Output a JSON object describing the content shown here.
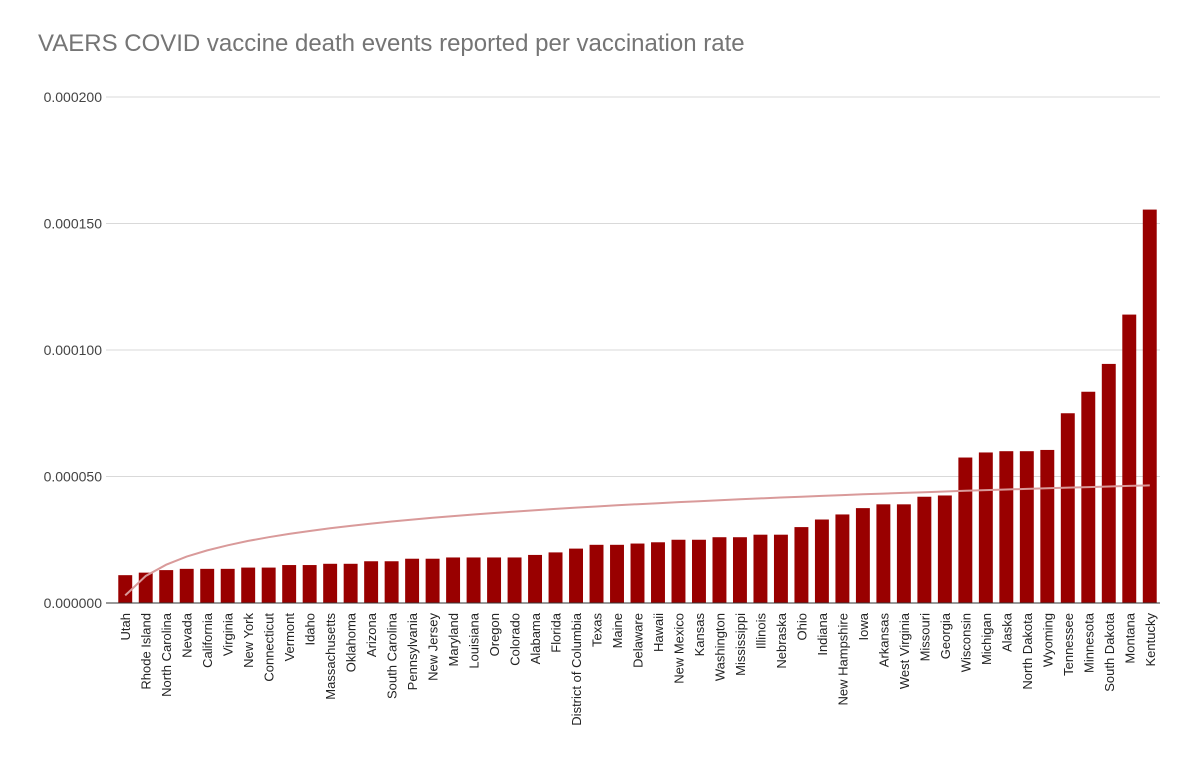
{
  "chart_data": {
    "type": "bar",
    "title": "VAERS COVID vaccine death events reported per vaccination rate",
    "xlabel": "",
    "ylabel": "",
    "ylim": [
      0,
      0.0002
    ],
    "yticks": [
      "0.000000",
      "0.000050",
      "0.000100",
      "0.000150",
      "0.000200"
    ],
    "ytick_values": [
      0,
      5e-05,
      0.0001,
      0.00015,
      0.0002
    ],
    "bar_color": "#990000",
    "trendline_color": "#d99a9a",
    "trendline": {
      "type": "logarithmic",
      "start": 3e-06,
      "end": 4.65e-05
    },
    "categories": [
      "Utah",
      "Rhode Island",
      "North Carolina",
      "Nevada",
      "California",
      "Virginia",
      "New York",
      "Connecticut",
      "Vermont",
      "Idaho",
      "Massachusetts",
      "Oklahoma",
      "Arizona",
      "South Carolina",
      "Pennsylvania",
      "New Jersey",
      "Maryland",
      "Louisiana",
      "Oregon",
      "Colorado",
      "Alabama",
      "Florida",
      "District of Columbia",
      "Texas",
      "Maine",
      "Delaware",
      "Hawaii",
      "New Mexico",
      "Kansas",
      "Washington",
      "Mississippi",
      "Illinois",
      "Nebraska",
      "Ohio",
      "Indiana",
      "New Hampshire",
      "Iowa",
      "Arkansas",
      "West Virginia",
      "Missouri",
      "Georgia",
      "Wisconsin",
      "Michigan",
      "Alaska",
      "North Dakota",
      "Wyoming",
      "Tennessee",
      "Minnesota",
      "South Dakota",
      "Montana",
      "Kentucky"
    ],
    "values": [
      1.1e-05,
      1.2e-05,
      1.3e-05,
      1.35e-05,
      1.35e-05,
      1.35e-05,
      1.4e-05,
      1.4e-05,
      1.5e-05,
      1.5e-05,
      1.55e-05,
      1.55e-05,
      1.65e-05,
      1.65e-05,
      1.75e-05,
      1.75e-05,
      1.8e-05,
      1.8e-05,
      1.8e-05,
      1.8e-05,
      1.9e-05,
      2e-05,
      2.15e-05,
      2.3e-05,
      2.3e-05,
      2.35e-05,
      2.4e-05,
      2.5e-05,
      2.5e-05,
      2.6e-05,
      2.6e-05,
      2.7e-05,
      2.7e-05,
      3e-05,
      3.3e-05,
      3.5e-05,
      3.75e-05,
      3.9e-05,
      3.9e-05,
      4.2e-05,
      4.25e-05,
      5.75e-05,
      5.95e-05,
      6e-05,
      6e-05,
      6.05e-05,
      7.5e-05,
      8.35e-05,
      9.45e-05,
      0.000114,
      0.0001555
    ]
  }
}
